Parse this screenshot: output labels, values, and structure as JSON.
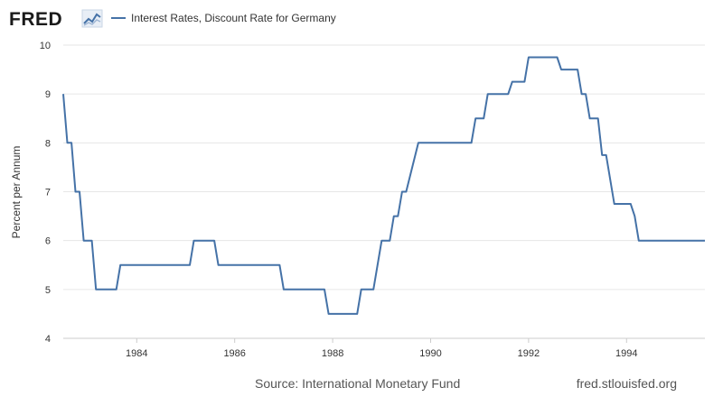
{
  "header": {
    "logo_text": "FRED",
    "legend_label": "Interest Rates, Discount Rate for Germany"
  },
  "footer": {
    "source": "Source: International Monetary Fund",
    "site": "fred.stlouisfed.org"
  },
  "colors": {
    "series": "#4572a7",
    "logo_chart": "#4572a7",
    "grid": "#e6e6e6"
  },
  "chart_data": {
    "type": "line",
    "title": "Interest Rates, Discount Rate for Germany",
    "xlabel": "",
    "ylabel": "Percent per Annum",
    "xlim": [
      1982.5,
      1995.6
    ],
    "ylim": [
      4,
      10
    ],
    "x_ticks": [
      1984,
      1986,
      1988,
      1990,
      1992,
      1994
    ],
    "x_tick_labels": [
      "1984",
      "1986",
      "1988",
      "1990",
      "1992",
      "1994"
    ],
    "y_ticks": [
      4,
      5,
      6,
      7,
      8,
      9,
      10
    ],
    "y_tick_labels": [
      "4",
      "5",
      "6",
      "7",
      "8",
      "9",
      "10"
    ],
    "grid": true,
    "legend": "top-left",
    "series": [
      {
        "name": "Interest Rates, Discount Rate for Germany",
        "x": [
          1982.5,
          1982.583,
          1982.667,
          1982.75,
          1982.833,
          1982.917,
          1983.083,
          1983.167,
          1983.583,
          1983.667,
          1985.083,
          1985.167,
          1985.583,
          1985.667,
          1986.917,
          1987.0,
          1987.833,
          1987.917,
          1988.5,
          1988.583,
          1988.833,
          1989.0,
          1989.167,
          1989.25,
          1989.333,
          1989.417,
          1989.5,
          1989.75,
          1989.833,
          1990.833,
          1990.917,
          1991.083,
          1991.167,
          1991.583,
          1991.667,
          1991.917,
          1992.0,
          1992.583,
          1992.667,
          1993.0,
          1993.083,
          1993.167,
          1993.25,
          1993.417,
          1993.5,
          1993.583,
          1993.75,
          1994.083,
          1994.167,
          1994.25,
          1995.6
        ],
        "values": [
          9.0,
          8.0,
          8.0,
          7.0,
          7.0,
          6.0,
          6.0,
          5.0,
          5.0,
          5.5,
          5.5,
          6.0,
          6.0,
          5.5,
          5.5,
          5.0,
          5.0,
          4.5,
          4.5,
          5.0,
          5.0,
          6.0,
          6.0,
          6.5,
          6.5,
          7.0,
          7.0,
          8.0,
          8.0,
          8.0,
          8.5,
          8.5,
          9.0,
          9.0,
          9.25,
          9.25,
          9.75,
          9.75,
          9.5,
          9.5,
          9.0,
          9.0,
          8.5,
          8.5,
          7.75,
          7.75,
          6.75,
          6.75,
          6.5,
          6.0,
          6.0
        ]
      }
    ]
  }
}
